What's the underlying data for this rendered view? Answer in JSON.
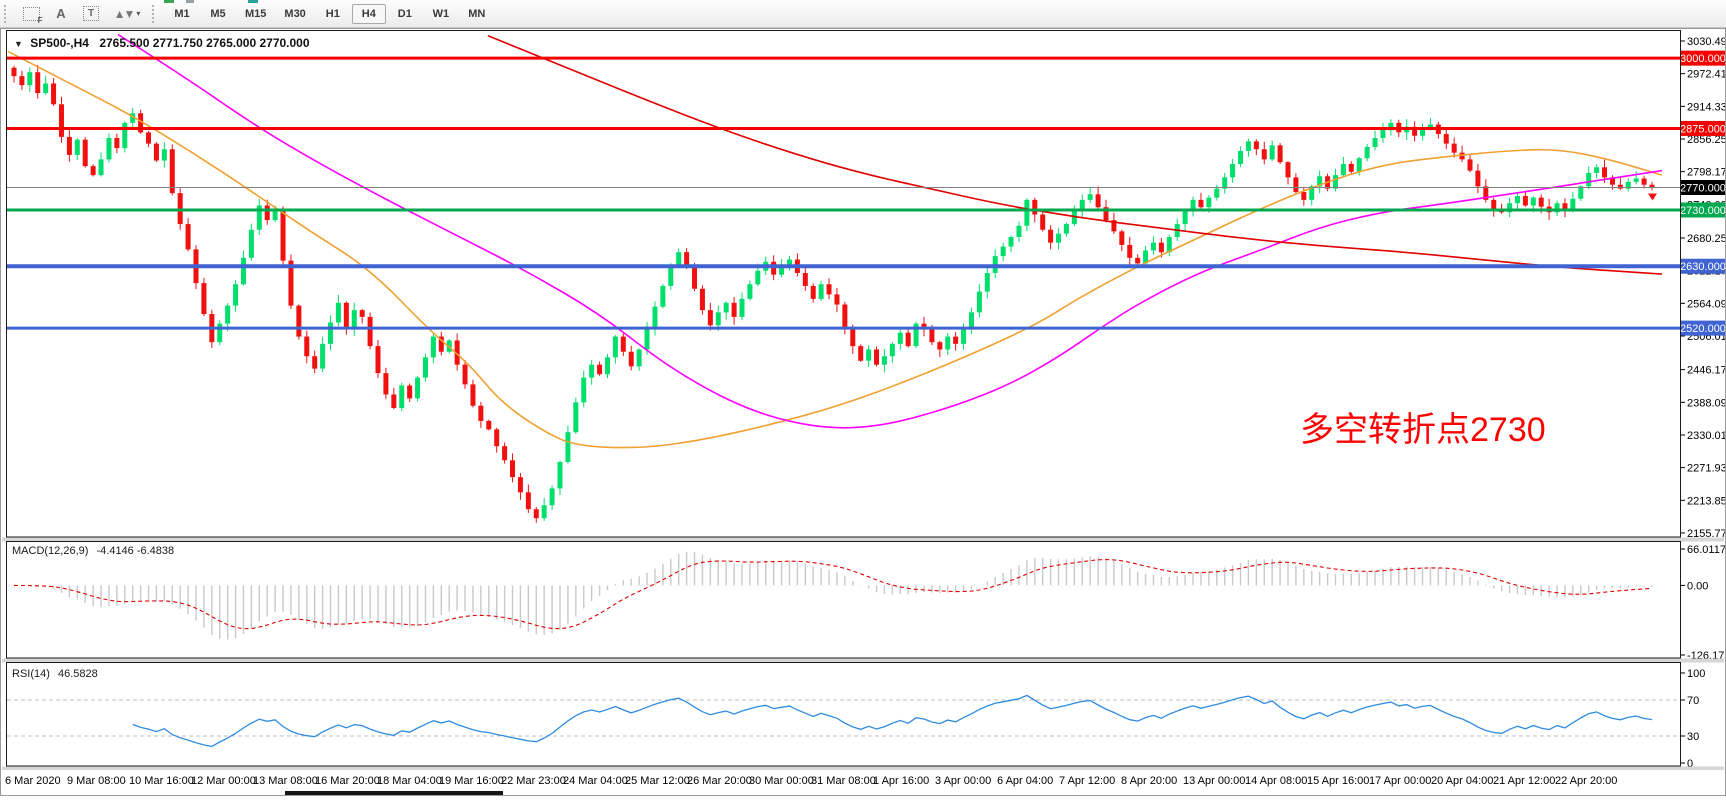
{
  "toolbar": {
    "tools": {
      "grid_label": "F",
      "a_label": "A",
      "t_label": "T",
      "arrows_glyph": "▲▼",
      "caret": "▾"
    },
    "timeframes": [
      "M1",
      "M5",
      "M15",
      "M30",
      "H1",
      "H4",
      "D1",
      "W1",
      "MN"
    ],
    "active_timeframe": "H4"
  },
  "chart": {
    "dropdown_arrow": "▼",
    "symbol_period": "SP500-,H4",
    "quote_line": "2765.500 2771.750 2765.000 2770.000",
    "annotation": {
      "text": "多空转折点2730",
      "color": "#FF0000"
    }
  },
  "chart_data": {
    "type": "candlestick",
    "symbol": "SP500-",
    "timeframe": "H4",
    "quote": {
      "open": 2765.5,
      "high": 2771.75,
      "low": 2765.0,
      "close": 2770.0
    },
    "bull_color": "#00DE6C",
    "bear_color": "#F01010",
    "closes": [
      2968,
      2952,
      2975,
      2938,
      2955,
      2918,
      2860,
      2828,
      2855,
      2808,
      2792,
      2820,
      2858,
      2840,
      2885,
      2902,
      2868,
      2848,
      2818,
      2838,
      2760,
      2705,
      2660,
      2600,
      2545,
      2495,
      2528,
      2560,
      2598,
      2645,
      2695,
      2738,
      2712,
      2728,
      2640,
      2560,
      2505,
      2470,
      2448,
      2492,
      2530,
      2565,
      2520,
      2552,
      2540,
      2488,
      2440,
      2402,
      2378,
      2418,
      2395,
      2432,
      2468,
      2505,
      2478,
      2498,
      2455,
      2420,
      2382,
      2355,
      2340,
      2310,
      2285,
      2255,
      2228,
      2198,
      2182,
      2205,
      2235,
      2282,
      2335,
      2388,
      2432,
      2455,
      2438,
      2468,
      2505,
      2478,
      2452,
      2482,
      2520,
      2558,
      2595,
      2632,
      2655,
      2628,
      2590,
      2552,
      2525,
      2548,
      2565,
      2540,
      2572,
      2598,
      2622,
      2638,
      2615,
      2630,
      2642,
      2618,
      2595,
      2572,
      2598,
      2580,
      2562,
      2522,
      2488,
      2462,
      2482,
      2455,
      2470,
      2492,
      2512,
      2488,
      2528,
      2518,
      2495,
      2482,
      2505,
      2492,
      2520,
      2548,
      2585,
      2618,
      2648,
      2665,
      2682,
      2702,
      2748,
      2722,
      2695,
      2672,
      2688,
      2705,
      2728,
      2748,
      2758,
      2735,
      2712,
      2692,
      2668,
      2645,
      2635,
      2658,
      2672,
      2655,
      2682,
      2705,
      2728,
      2748,
      2735,
      2752,
      2768,
      2788,
      2812,
      2835,
      2852,
      2838,
      2820,
      2845,
      2815,
      2788,
      2762,
      2748,
      2772,
      2790,
      2768,
      2792,
      2812,
      2798,
      2822,
      2842,
      2858,
      2872,
      2885,
      2868,
      2878,
      2862,
      2875,
      2882,
      2865,
      2848,
      2832,
      2820,
      2800,
      2772,
      2748,
      2732,
      2726,
      2742,
      2755,
      2738,
      2752,
      2736,
      2726,
      2742,
      2728,
      2750,
      2772,
      2796,
      2806,
      2788,
      2775,
      2768,
      2780,
      2786,
      2775,
      2770
    ],
    "price_axis": {
      "ticks": [
        "3030.490",
        "2972.410",
        "2914.330",
        "2856.250",
        "2798.170",
        "2740.090",
        "2680.250",
        "2622.170",
        "2564.090",
        "2506.010",
        "2446.170",
        "2388.090",
        "2330.010",
        "2271.930",
        "2213.850",
        "2155.770"
      ],
      "current_price": {
        "value": 2770.0,
        "label": "2770.000",
        "line_color": "#808080",
        "label_bg": "#000000"
      },
      "levels": [
        {
          "price": 3000.0,
          "label": "3000.000",
          "color": "#F60000",
          "width": 3
        },
        {
          "price": 2875.0,
          "label": "2875.000",
          "color": "#F60000",
          "width": 3
        },
        {
          "price": 2730.0,
          "label": "2730.000",
          "color": "#00A94F",
          "width": 3
        },
        {
          "price": 2630.0,
          "label": "2630.000",
          "color": "#3F63D2",
          "width": 4
        },
        {
          "price": 2520.0,
          "label": "2520.000",
          "color": "#3F63D2",
          "width": 3
        }
      ]
    },
    "time_axis": {
      "labels": [
        "6 Mar 2020",
        "9 Mar 08:00",
        "10 Mar 16:00",
        "12 Mar 00:00",
        "13 Mar 08:00",
        "16 Mar 20:00",
        "18 Mar 04:00",
        "19 Mar 16:00",
        "22 Mar 23:00",
        "24 Mar 04:00",
        "25 Mar 12:00",
        "26 Mar 20:00",
        "30 Mar 00:00",
        "31 Mar 08:00",
        "1 Apr 16:00",
        "3 Apr 00:00",
        "6 Apr 04:00",
        "7 Apr 12:00",
        "8 Apr 20:00",
        "13 Apr 00:00",
        "14 Apr 08:00",
        "15 Apr 16:00",
        "17 Apr 00:00",
        "20 Apr 04:00",
        "21 Apr 12:00",
        "22 Apr 20:00"
      ]
    },
    "ma_lines": [
      {
        "name": "ma-fast-orange",
        "color": "#F0A030",
        "points": [
          [
            8,
            3012
          ],
          [
            70,
            2955
          ],
          [
            130,
            2900
          ],
          [
            190,
            2835
          ],
          [
            250,
            2765
          ],
          [
            310,
            2692
          ],
          [
            370,
            2625
          ],
          [
            430,
            2515
          ],
          [
            470,
            2455
          ],
          [
            500,
            2390
          ],
          [
            540,
            2340
          ],
          [
            575,
            2310
          ],
          [
            640,
            2306
          ],
          [
            700,
            2320
          ],
          [
            770,
            2348
          ],
          [
            840,
            2382
          ],
          [
            910,
            2428
          ],
          [
            980,
            2480
          ],
          [
            1040,
            2530
          ],
          [
            1080,
            2575
          ],
          [
            1140,
            2632
          ],
          [
            1200,
            2682
          ],
          [
            1260,
            2732
          ],
          [
            1320,
            2776
          ],
          [
            1380,
            2810
          ],
          [
            1440,
            2824
          ],
          [
            1510,
            2836
          ],
          [
            1560,
            2838
          ],
          [
            1610,
            2820
          ],
          [
            1662,
            2792
          ]
        ]
      },
      {
        "name": "ma-slow-magenta",
        "color": "#FF00FF",
        "points": [
          [
            118,
            3042
          ],
          [
            180,
            2972
          ],
          [
            257,
            2878
          ],
          [
            320,
            2812
          ],
          [
            390,
            2745
          ],
          [
            460,
            2682
          ],
          [
            530,
            2618
          ],
          [
            600,
            2545
          ],
          [
            660,
            2462
          ],
          [
            710,
            2408
          ],
          [
            750,
            2375
          ],
          [
            790,
            2353
          ],
          [
            830,
            2342
          ],
          [
            870,
            2344
          ],
          [
            910,
            2358
          ],
          [
            960,
            2385
          ],
          [
            1010,
            2420
          ],
          [
            1060,
            2470
          ],
          [
            1100,
            2520
          ],
          [
            1140,
            2565
          ],
          [
            1200,
            2620
          ],
          [
            1260,
            2658
          ],
          [
            1320,
            2700
          ],
          [
            1380,
            2726
          ],
          [
            1440,
            2740
          ],
          [
            1500,
            2756
          ],
          [
            1560,
            2772
          ],
          [
            1610,
            2786
          ],
          [
            1662,
            2800
          ]
        ]
      },
      {
        "name": "ma-long-red",
        "color": "#E00000",
        "points": [
          [
            488,
            3040
          ],
          [
            560,
            2988
          ],
          [
            640,
            2930
          ],
          [
            718,
            2876
          ],
          [
            790,
            2832
          ],
          [
            860,
            2796
          ],
          [
            930,
            2768
          ],
          [
            1000,
            2740
          ],
          [
            1080,
            2716
          ],
          [
            1160,
            2698
          ],
          [
            1240,
            2680
          ],
          [
            1320,
            2666
          ],
          [
            1400,
            2656
          ],
          [
            1480,
            2642
          ],
          [
            1560,
            2628
          ],
          [
            1662,
            2616
          ]
        ]
      }
    ],
    "indicators": {
      "macd": {
        "label": "MACD(12,26,9)",
        "values": "-4.4146 -6.4838",
        "params": [
          12,
          26,
          9
        ],
        "axis_labels": [
          "66.0117",
          "0.00",
          "-126.173"
        ],
        "histogram_color": "#c9c9c9",
        "signal_color": "#E00000"
      },
      "rsi": {
        "label": "RSI(14)",
        "value": "46.5828",
        "period": 14,
        "axis_labels": [
          "100",
          "70",
          "30",
          "0"
        ],
        "levels": [
          70,
          30
        ],
        "line_color": "#2E8BE0",
        "level_color": "#bdbdbd"
      }
    },
    "annotation_text": "多空转折点2730"
  }
}
